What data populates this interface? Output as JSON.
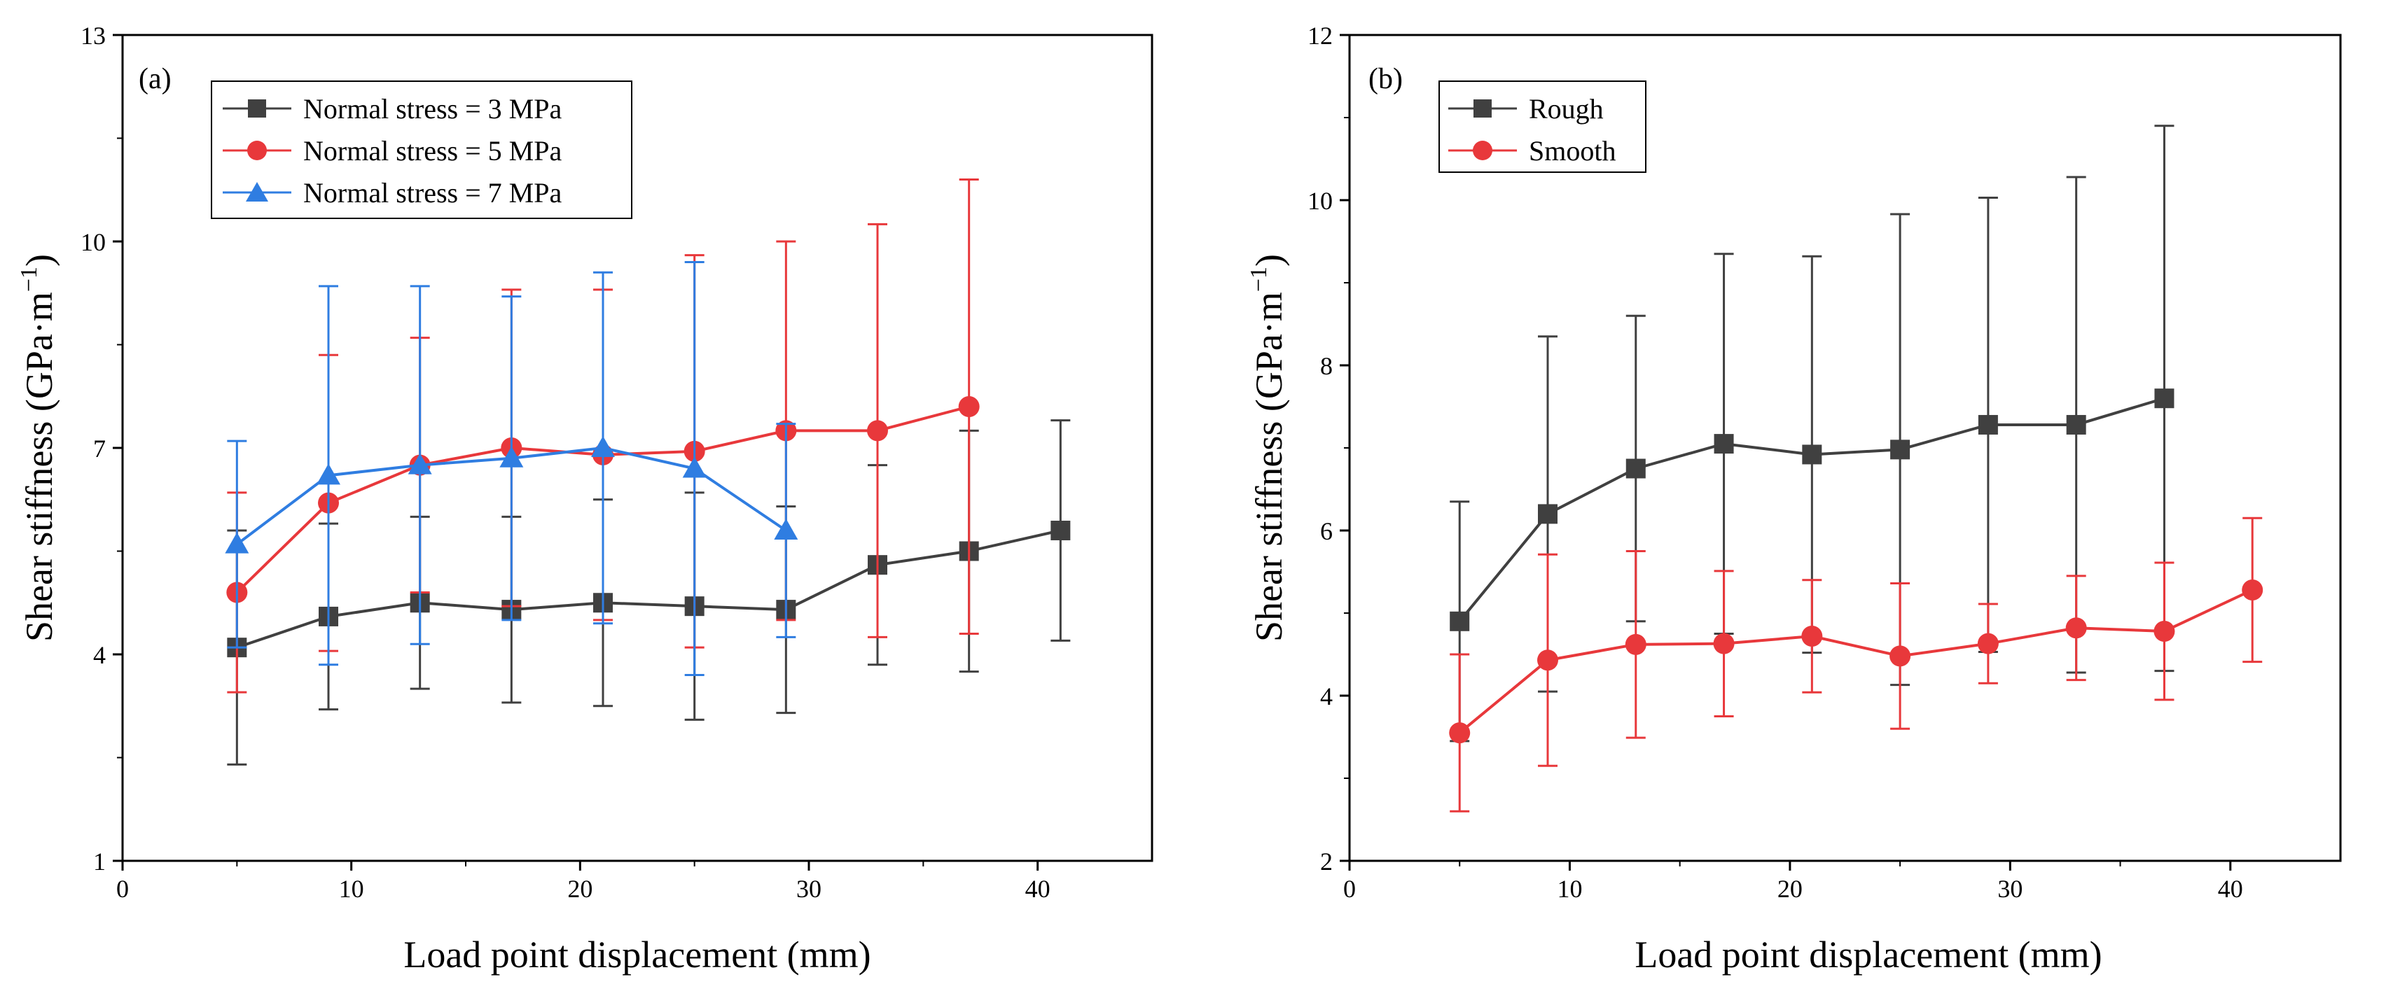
{
  "chart_data": [
    {
      "type": "line",
      "panel_label": "(a)",
      "xlabel": "Load point displacement (mm)",
      "ylabel": "Shear stiffness (GPa·m",
      "ylabel_sup": "−1",
      "ylabel_close": ")",
      "xlim": [
        0,
        45
      ],
      "ylim": [
        1,
        13
      ],
      "xticks": [
        0,
        10,
        20,
        30,
        40
      ],
      "yticks": [
        1,
        4,
        7,
        10,
        13
      ],
      "xtick_labels": [
        "0",
        "10",
        "20",
        "30",
        "40"
      ],
      "ytick_labels": [
        "1",
        "4",
        "7",
        "10",
        "13"
      ],
      "legend_position": "top-left",
      "series": [
        {
          "name": "Normal stress = 3 MPa",
          "color": "#404040",
          "marker": "square",
          "x": [
            5,
            9,
            13,
            17,
            21,
            25,
            29,
            33,
            37,
            41
          ],
          "y": [
            4.1,
            4.55,
            4.75,
            4.65,
            4.75,
            4.7,
            4.65,
            5.3,
            5.5,
            5.8
          ],
          "err": [
            1.7,
            1.35,
            1.25,
            1.35,
            1.5,
            1.65,
            1.5,
            1.45,
            1.75,
            1.6
          ]
        },
        {
          "name": "Normal stress = 5 MPa",
          "color": "#e8383b",
          "marker": "circle",
          "x": [
            5,
            9,
            13,
            17,
            21,
            25,
            29,
            33,
            37
          ],
          "y": [
            4.9,
            6.2,
            6.75,
            7.0,
            6.9,
            6.95,
            7.25,
            7.25,
            7.6
          ],
          "err": [
            1.45,
            2.15,
            1.85,
            2.3,
            2.4,
            2.85,
            2.75,
            3.0,
            3.3
          ]
        },
        {
          "name": "Normal stress = 7 MPa",
          "color": "#2f7de1",
          "marker": "triangle",
          "x": [
            5,
            9,
            13,
            17,
            21,
            25,
            29
          ],
          "y": [
            5.6,
            6.6,
            6.75,
            6.85,
            7.0,
            6.7,
            5.8
          ],
          "err": [
            1.5,
            2.75,
            2.6,
            2.35,
            2.55,
            3.0,
            1.55
          ]
        }
      ]
    },
    {
      "type": "line",
      "panel_label": "(b)",
      "xlabel": "Load point displacement (mm)",
      "ylabel": "Shear stiffness (GPa·m",
      "ylabel_sup": "−1",
      "ylabel_close": ")",
      "xlim": [
        0,
        45
      ],
      "ylim": [
        2,
        12
      ],
      "xticks": [
        0,
        10,
        20,
        30,
        40
      ],
      "yticks": [
        2,
        4,
        6,
        8,
        10,
        12
      ],
      "xtick_labels": [
        "0",
        "10",
        "20",
        "30",
        "40"
      ],
      "ytick_labels": [
        "2",
        "4",
        "6",
        "8",
        "10",
        "12"
      ],
      "legend_position": "top-left",
      "series": [
        {
          "name": "Rough",
          "color": "#404040",
          "marker": "square",
          "x": [
            5,
            9,
            13,
            17,
            21,
            25,
            29,
            33,
            37
          ],
          "y": [
            4.9,
            6.2,
            6.75,
            7.05,
            6.92,
            6.98,
            7.28,
            7.28,
            7.6
          ],
          "err": [
            1.45,
            2.15,
            1.85,
            2.3,
            2.4,
            2.85,
            2.75,
            3.0,
            3.3
          ]
        },
        {
          "name": "Smooth",
          "color": "#e8383b",
          "marker": "circle",
          "x": [
            5,
            9,
            13,
            17,
            21,
            25,
            29,
            33,
            37,
            41
          ],
          "y": [
            3.55,
            4.43,
            4.62,
            4.63,
            4.72,
            4.48,
            4.63,
            4.82,
            4.78,
            5.28
          ],
          "err": [
            0.95,
            1.28,
            1.13,
            0.88,
            0.68,
            0.88,
            0.48,
            0.63,
            0.83,
            0.87
          ]
        }
      ]
    }
  ]
}
